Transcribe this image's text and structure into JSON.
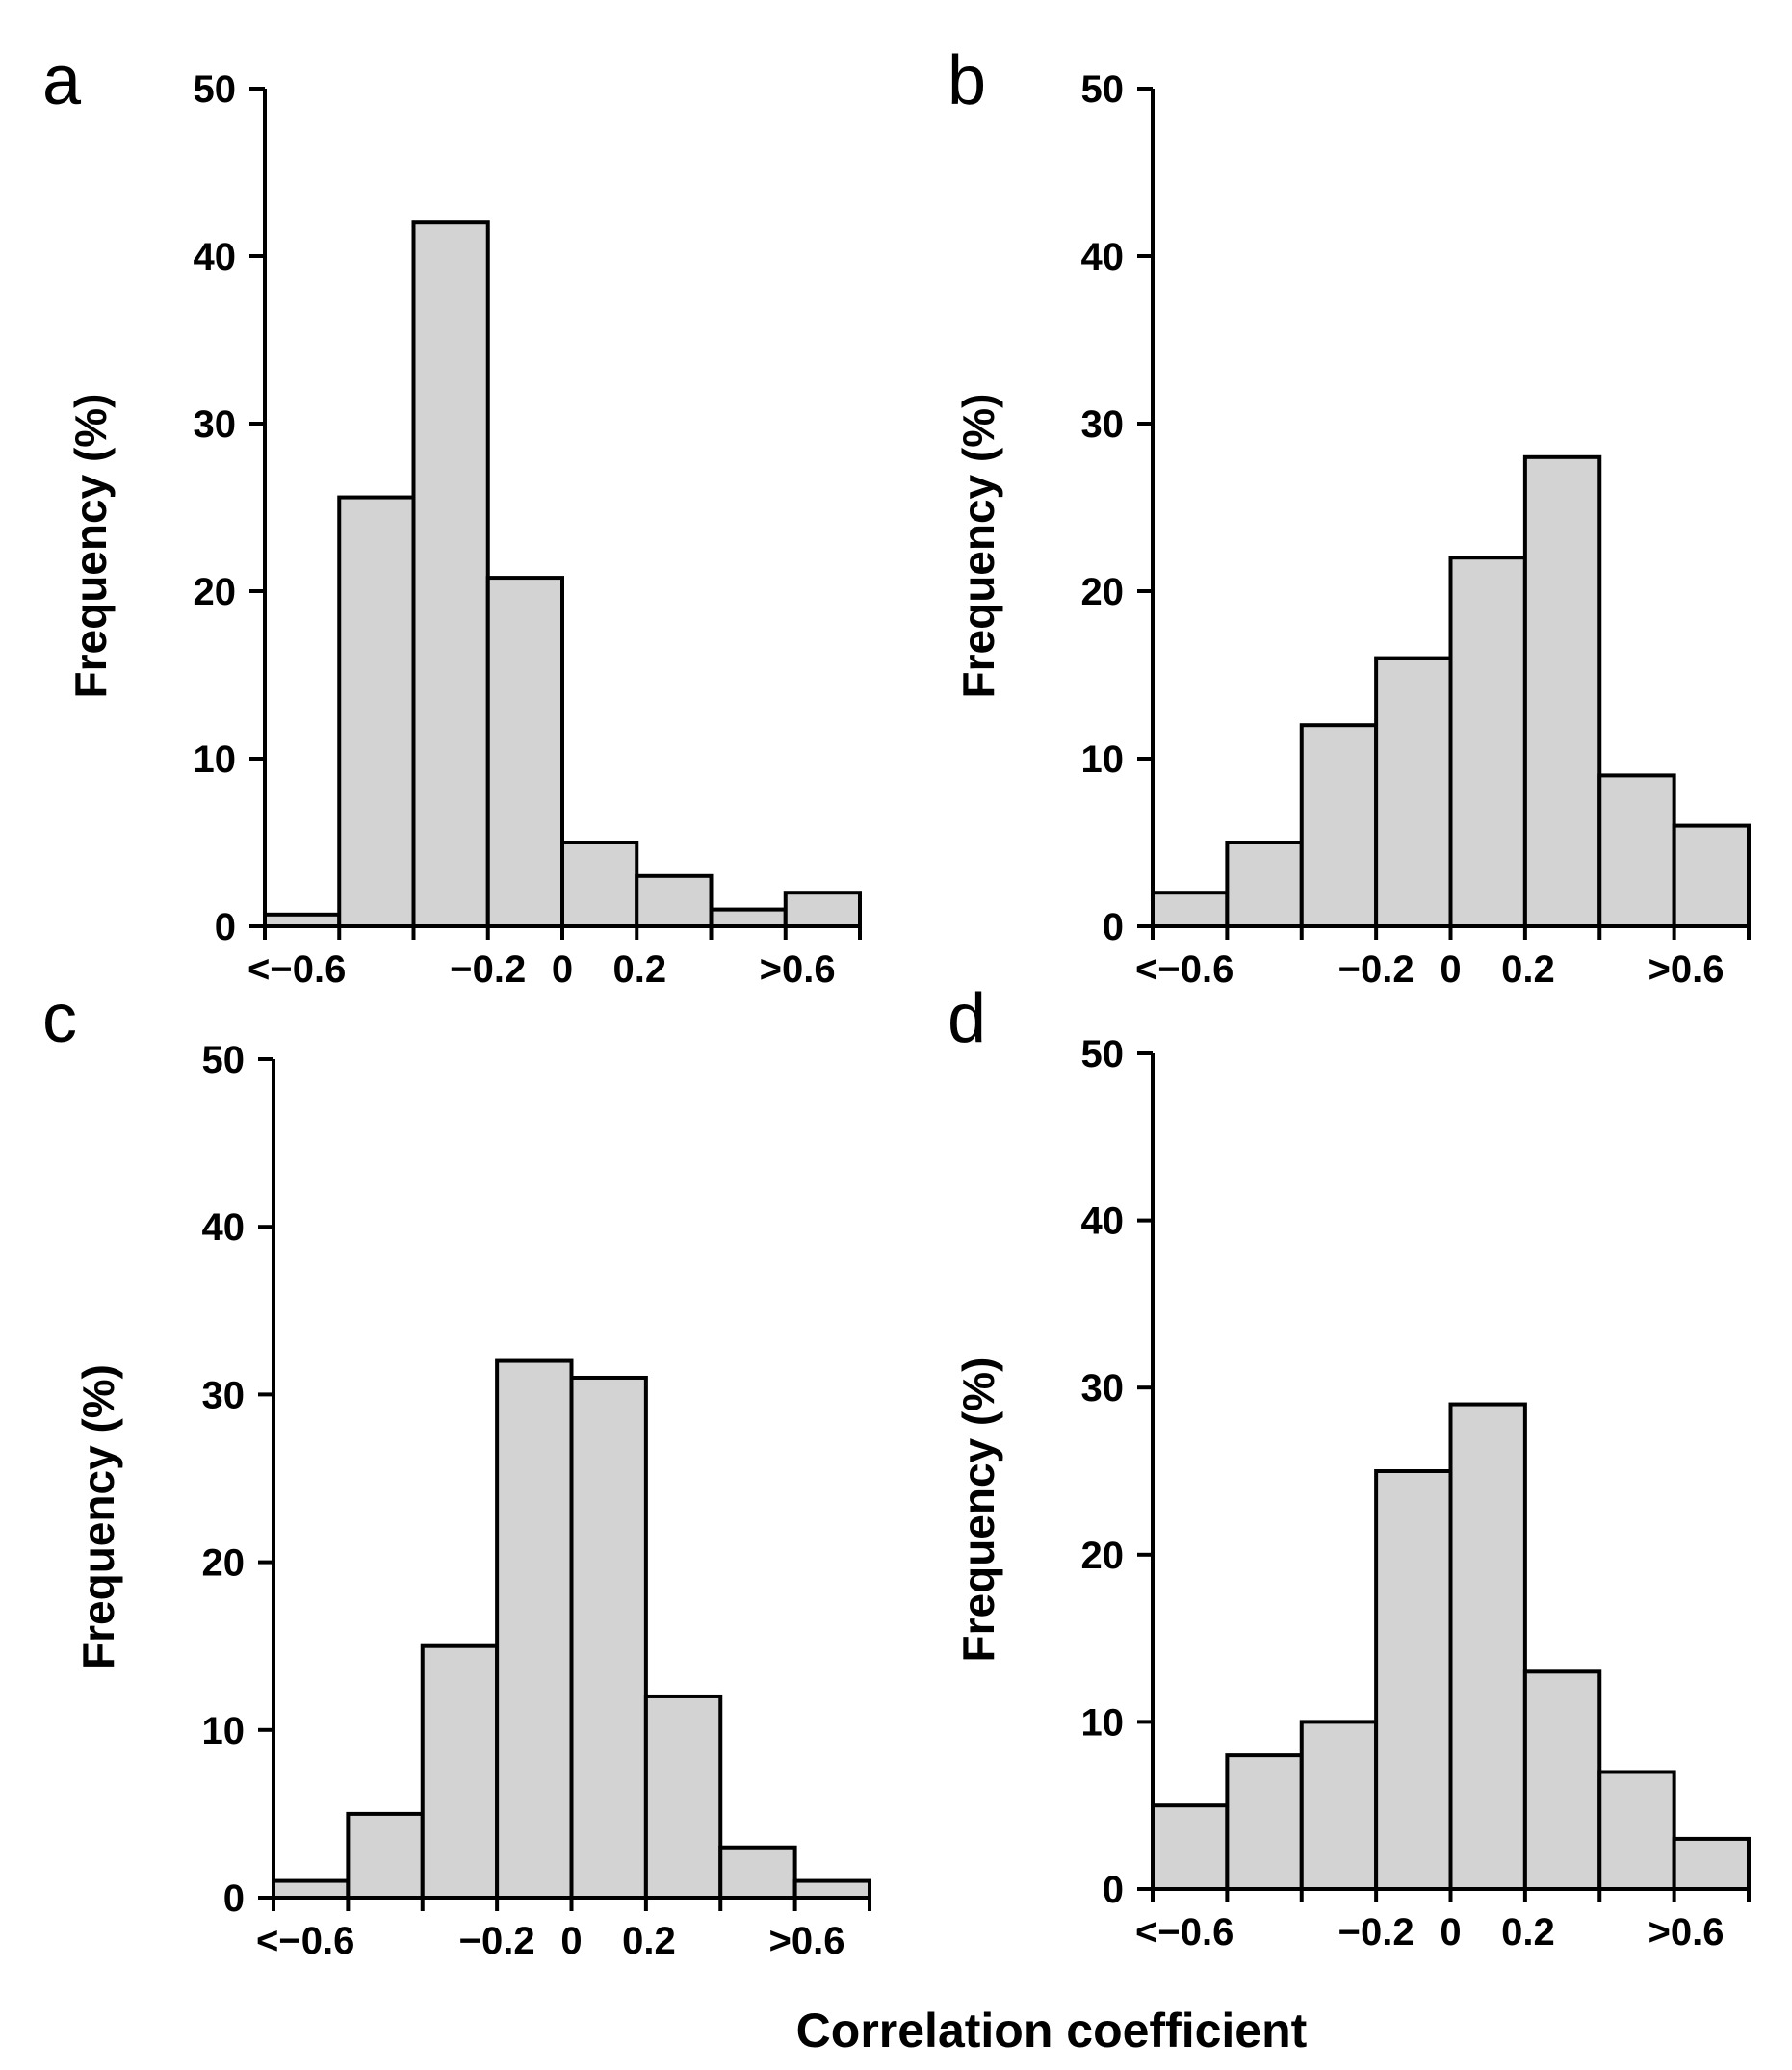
{
  "xlabel_global": "Correlation coefficient",
  "colors": {
    "bar_fill": "#d3d3d3",
    "bar_stroke": "#000000",
    "axis": "#000000"
  },
  "chart_data": [
    {
      "panel": "a",
      "type": "bar",
      "ylabel": "Frequency (%)",
      "xlabel": "",
      "ylim": [
        0,
        50
      ],
      "yticks": [
        "0",
        "10",
        "20",
        "30",
        "40",
        "50"
      ],
      "xticklabels": [
        "<−0.6",
        "−0.2",
        "0",
        "0.2",
        ">0.6"
      ],
      "bin_edges": [
        -0.8,
        -0.6,
        -0.4,
        -0.2,
        0,
        0.2,
        0.4,
        0.6,
        0.8
      ],
      "values": [
        0.7,
        25.6,
        42,
        20.8,
        5,
        3,
        1,
        2
      ]
    },
    {
      "panel": "b",
      "type": "bar",
      "ylabel": "Frequency (%)",
      "xlabel": "",
      "ylim": [
        0,
        50
      ],
      "yticks": [
        "0",
        "10",
        "20",
        "30",
        "40",
        "50"
      ],
      "xticklabels": [
        "<−0.6",
        "−0.2",
        "0",
        "0.2",
        ">0.6"
      ],
      "bin_edges": [
        -0.8,
        -0.6,
        -0.4,
        -0.2,
        0,
        0.2,
        0.4,
        0.6,
        0.8
      ],
      "values": [
        2,
        5,
        12,
        16,
        22,
        28,
        9,
        6
      ]
    },
    {
      "panel": "c",
      "type": "bar",
      "ylabel": "Frequency (%)",
      "xlabel": "",
      "ylim": [
        0,
        50
      ],
      "yticks": [
        "0",
        "10",
        "20",
        "30",
        "40",
        "50"
      ],
      "xticklabels": [
        "<−0.6",
        "−0.2",
        "0",
        "0.2",
        ">0.6"
      ],
      "bin_edges": [
        -0.8,
        -0.6,
        -0.4,
        -0.2,
        0,
        0.2,
        0.4,
        0.6,
        0.8
      ],
      "values": [
        1,
        5,
        15,
        32,
        31,
        12,
        3,
        1
      ]
    },
    {
      "panel": "d",
      "type": "bar",
      "ylabel": "Frequency (%)",
      "xlabel": "",
      "ylim": [
        0,
        50
      ],
      "yticks": [
        "0",
        "10",
        "20",
        "30",
        "40",
        "50"
      ],
      "xticklabels": [
        "<−0.6",
        "−0.2",
        "0",
        "0.2",
        ">0.6"
      ],
      "bin_edges": [
        -0.8,
        -0.6,
        -0.4,
        -0.2,
        0,
        0.2,
        0.4,
        0.6,
        0.8
      ],
      "values": [
        5,
        8,
        10,
        25,
        29,
        13,
        7,
        3
      ]
    }
  ]
}
